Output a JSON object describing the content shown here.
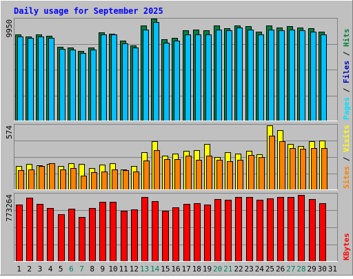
{
  "chart_data": {
    "type": "bar",
    "title": "Daily usage for September 2025",
    "categories": [
      "1",
      "2",
      "3",
      "4",
      "5",
      "6",
      "7",
      "8",
      "9",
      "10",
      "11",
      "12",
      "13",
      "14",
      "15",
      "16",
      "17",
      "18",
      "19",
      "20",
      "21",
      "22",
      "23",
      "24",
      "25",
      "26",
      "27",
      "28",
      "29",
      "30",
      "31"
    ],
    "weekend_days": [
      "6",
      "7",
      "13",
      "14",
      "20",
      "21",
      "27",
      "28"
    ],
    "panels": [
      {
        "id": "hits",
        "max_label": "9950",
        "ylim": [
          0,
          9950
        ],
        "legend": [
          "Pages",
          "Files",
          "Hits"
        ],
        "series": [
          {
            "name": "Hits",
            "color": "#008040",
            "values": [
              8400,
              8200,
              8400,
              8300,
              7200,
              7100,
              6800,
              7100,
              8600,
              8500,
              7800,
              7300,
              9300,
              9950,
              7900,
              8100,
              8800,
              8900,
              8800,
              9300,
              9000,
              9300,
              9200,
              8700,
              9300,
              9100,
              9200,
              9100,
              9000,
              8700,
              0
            ]
          },
          {
            "name": "Files",
            "color": "#00C0FF",
            "values": [
              8200,
              8100,
              8200,
              8100,
              7000,
              6900,
              6600,
              6900,
              8400,
              8400,
              7500,
              7100,
              8900,
              9600,
              7600,
              7800,
              8400,
              8400,
              8400,
              8900,
              8800,
              9100,
              8900,
              8400,
              8900,
              8800,
              8900,
              8800,
              8700,
              8400,
              0
            ]
          },
          {
            "name": "Pages",
            "color": "#00E0FF",
            "values": [
              0,
              0,
              0,
              0,
              0,
              0,
              0,
              0,
              0,
              0,
              0,
              0,
              0,
              0,
              0,
              0,
              0,
              0,
              0,
              0,
              0,
              0,
              0,
              0,
              0,
              0,
              0,
              0,
              0,
              0,
              0
            ]
          }
        ]
      },
      {
        "id": "visits",
        "max_label": "574",
        "ylim": [
          0,
          574
        ],
        "legend": [
          "Sites",
          "Visits"
        ],
        "series": [
          {
            "name": "Visits",
            "color": "#FFFF00",
            "values": [
              210,
              225,
              215,
              225,
              205,
              235,
              225,
              190,
              220,
              230,
              180,
              210,
              330,
              425,
              300,
              320,
              340,
              350,
              405,
              290,
              330,
              320,
              340,
              310,
              570,
              525,
              400,
              385,
              430,
              435,
              0
            ]
          },
          {
            "name": "Sites",
            "color": "#FF8000",
            "values": [
              170,
              180,
              205,
              230,
              180,
              190,
              120,
              150,
              160,
              180,
              170,
              160,
              255,
              350,
              270,
              270,
              300,
              260,
              300,
              260,
              250,
              265,
              305,
              290,
              475,
              425,
              365,
              360,
              365,
              365,
              0
            ]
          }
        ]
      },
      {
        "id": "kbytes",
        "max_label": "773264",
        "ylim": [
          0,
          773264
        ],
        "legend": [
          "KBytes"
        ],
        "series": [
          {
            "name": "KBytes",
            "color": "#FF0000",
            "values": [
              645000,
              727000,
              657000,
              605000,
              537000,
              603000,
              507000,
              608000,
              679000,
              679000,
              578000,
              595000,
              732000,
              684000,
              576000,
              614000,
              655000,
              660000,
              649000,
              709000,
              705000,
              733000,
              737000,
              705000,
              721000,
              735000,
              731000,
              760000,
              712000,
              660000,
              0
            ]
          }
        ]
      }
    ]
  }
}
